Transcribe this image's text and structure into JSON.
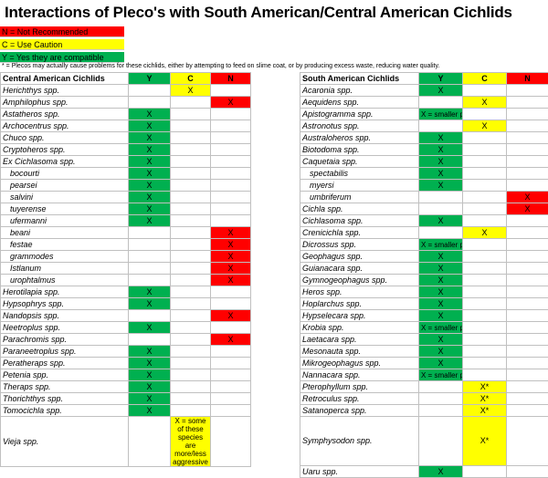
{
  "title": "Interactions of Pleco's with South American/Central American Cichlids",
  "legend": [
    {
      "text": "N = Not Recommended",
      "color": "#ff0000"
    },
    {
      "text": "C = Use Caution",
      "color": "#ffff00"
    },
    {
      "text": "Y = Yes they are compatible",
      "color": "#00b050"
    }
  ],
  "note": "* = Plecos may actually cause problems for these cichlids, either by attempting to feed on slime coat, or by producing excess waste, reducing water quality.",
  "central": {
    "header": {
      "name": "Central American Cichlids",
      "y": "Y",
      "c": "C",
      "n": "N"
    },
    "rows": [
      {
        "name": "Herichthys spp.",
        "y": "",
        "c": "X",
        "n": ""
      },
      {
        "name": "Amphilophus spp.",
        "y": "",
        "c": "",
        "n": "X"
      },
      {
        "name": "Astatheros spp.",
        "y": "X",
        "c": "",
        "n": ""
      },
      {
        "name": "Archocentrus spp.",
        "y": "X",
        "c": "",
        "n": ""
      },
      {
        "name": "Chuco spp.",
        "y": "X",
        "c": "",
        "n": ""
      },
      {
        "name": "Cryptoheros spp.",
        "y": "X",
        "c": "",
        "n": ""
      },
      {
        "name": "Ex Cichlasoma spp.",
        "y": "X",
        "c": "",
        "n": ""
      },
      {
        "name": "bocourti",
        "y": "X",
        "c": "",
        "n": ""
      },
      {
        "name": "pearsei",
        "y": "X",
        "c": "",
        "n": ""
      },
      {
        "name": "salvini",
        "y": "X",
        "c": "",
        "n": ""
      },
      {
        "name": "tuyerense",
        "y": "X",
        "c": "",
        "n": ""
      },
      {
        "name": "ufermanni",
        "y": "X",
        "c": "",
        "n": ""
      },
      {
        "name": "beani",
        "y": "",
        "c": "",
        "n": "X"
      },
      {
        "name": "festae",
        "y": "",
        "c": "",
        "n": "X"
      },
      {
        "name": "grammodes",
        "y": "",
        "c": "",
        "n": "X"
      },
      {
        "name": "Istlanum",
        "y": "",
        "c": "",
        "n": "X"
      },
      {
        "name": "urophtalmus",
        "y": "",
        "c": "",
        "n": "X"
      },
      {
        "name": "Herotilapia spp.",
        "y": "X",
        "c": "",
        "n": ""
      },
      {
        "name": "Hypsophrys spp.",
        "y": "X",
        "c": "",
        "n": ""
      },
      {
        "name": "Nandopsis spp.",
        "y": "",
        "c": "",
        "n": "X"
      },
      {
        "name": "Neetroplus spp.",
        "y": "X",
        "c": "",
        "n": ""
      },
      {
        "name": "Parachromis spp.",
        "y": "",
        "c": "",
        "n": "X"
      },
      {
        "name": "Paraneetroplus spp.",
        "y": "X",
        "c": "",
        "n": ""
      },
      {
        "name": "Peratheraps spp.",
        "y": "X",
        "c": "",
        "n": ""
      },
      {
        "name": "Petenia spp.",
        "y": "X",
        "c": "",
        "n": ""
      },
      {
        "name": "Theraps spp.",
        "y": "X",
        "c": "",
        "n": ""
      },
      {
        "name": "Thorichthys spp.",
        "y": "X",
        "c": "",
        "n": ""
      },
      {
        "name": "Tomocichla spp.",
        "y": "X",
        "c": "",
        "n": ""
      },
      {
        "name": "Vieja spp.",
        "y": "",
        "c": "X = some of these species are more/less aggressive",
        "n": ""
      }
    ]
  },
  "south": {
    "header": {
      "name": "South American Cichlids",
      "y": "Y",
      "c": "C",
      "n": "N"
    },
    "rows": [
      {
        "name": "Acaronia spp.",
        "y": "X",
        "c": "",
        "n": ""
      },
      {
        "name": "Aequidens spp.",
        "y": "",
        "c": "X",
        "n": ""
      },
      {
        "name": "Apistogramma spp.",
        "y": "X = smaller plecos",
        "c": "",
        "n": ""
      },
      {
        "name": "Astronotus spp.",
        "y": "",
        "c": "X",
        "n": ""
      },
      {
        "name": "Australoheros spp.",
        "y": "X",
        "c": "",
        "n": ""
      },
      {
        "name": "Biotodoma spp.",
        "y": "X",
        "c": "",
        "n": ""
      },
      {
        "name": "Caquetaia spp.",
        "y": "X",
        "c": "",
        "n": ""
      },
      {
        "name": "spectabilis",
        "y": "X",
        "c": "",
        "n": ""
      },
      {
        "name": "myersi",
        "y": "X",
        "c": "",
        "n": ""
      },
      {
        "name": "umbriferum",
        "y": "",
        "c": "",
        "n": "X"
      },
      {
        "name": "Cichla spp.",
        "y": "",
        "c": "",
        "n": "X"
      },
      {
        "name": "Cichlasoma spp.",
        "y": "X",
        "c": "",
        "n": ""
      },
      {
        "name": "Crenicichla spp.",
        "y": "",
        "c": "X",
        "n": ""
      },
      {
        "name": "Dicrossus spp.",
        "y": "X = smaller plecos",
        "c": "",
        "n": ""
      },
      {
        "name": "Geophagus spp.",
        "y": "X",
        "c": "",
        "n": ""
      },
      {
        "name": "Guianacara spp.",
        "y": "X",
        "c": "",
        "n": ""
      },
      {
        "name": "Gymnogeophagus spp.",
        "y": "X",
        "c": "",
        "n": ""
      },
      {
        "name": "Heros spp.",
        "y": "X",
        "c": "",
        "n": ""
      },
      {
        "name": "Hoplarchus spp.",
        "y": "X",
        "c": "",
        "n": ""
      },
      {
        "name": "Hypselecara spp.",
        "y": "X",
        "c": "",
        "n": ""
      },
      {
        "name": "Krobia spp.",
        "y": "X = smaller plecos",
        "c": "",
        "n": ""
      },
      {
        "name": "Laetacara spp.",
        "y": "X",
        "c": "",
        "n": ""
      },
      {
        "name": "Mesonauta spp.",
        "y": "X",
        "c": "",
        "n": ""
      },
      {
        "name": "Mikrogeophagus spp.",
        "y": "X",
        "c": "",
        "n": ""
      },
      {
        "name": "Nannacara spp.",
        "y": "X = smaller plecos",
        "c": "",
        "n": ""
      },
      {
        "name": "Pterophyllum spp.",
        "y": "",
        "c": "X*",
        "n": ""
      },
      {
        "name": "Retroculus spp.",
        "y": "",
        "c": "X*",
        "n": ""
      },
      {
        "name": "Satanoperca spp.",
        "y": "",
        "c": "X*",
        "n": ""
      },
      {
        "name": "Symphysodon spp.",
        "y": "",
        "c": "X*",
        "n": ""
      },
      {
        "name": "Uaru spp.",
        "y": "X",
        "c": "",
        "n": ""
      }
    ]
  },
  "colors": {
    "yes": "#00b050",
    "caution": "#ffff00",
    "no": "#ff0000"
  }
}
